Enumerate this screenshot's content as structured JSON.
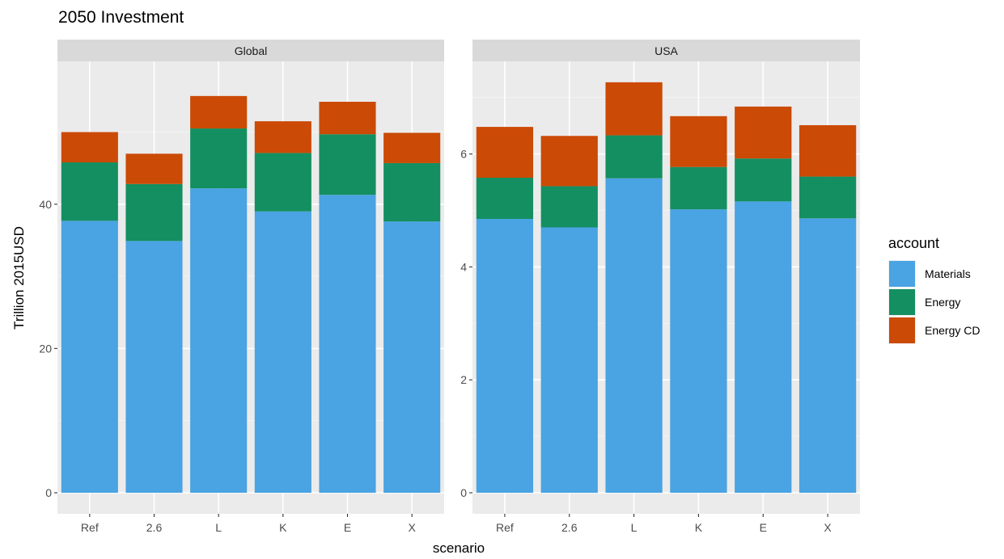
{
  "chart_data": {
    "type": "bar",
    "stacked": true,
    "title": "2050 Investment",
    "xlabel": "scenario",
    "ylabel": "Trillion 2015USD",
    "categories": [
      "Ref",
      "2.6",
      "L",
      "K",
      "E",
      "X"
    ],
    "legend": {
      "title": "account",
      "placement": "right",
      "items": [
        {
          "name": "Materials",
          "color": "#4AA3E2"
        },
        {
          "name": "Energy",
          "color": "#148F61"
        },
        {
          "name": "Energy CD",
          "color": "#CB4A05"
        }
      ]
    },
    "grid": true,
    "panels": [
      {
        "name": "Global",
        "ylim": [
          0,
          59.8
        ],
        "yticks": [
          0,
          20,
          40
        ],
        "series": [
          {
            "name": "Materials",
            "values": [
              37.7,
              34.9,
              42.2,
              39.0,
              41.3,
              37.6
            ]
          },
          {
            "name": "Energy",
            "values": [
              8.1,
              7.9,
              8.3,
              8.1,
              8.4,
              8.1
            ]
          },
          {
            "name": "Energy CD",
            "values": [
              4.2,
              4.2,
              4.5,
              4.4,
              4.5,
              4.2
            ]
          }
        ]
      },
      {
        "name": "USA",
        "ylim": [
          0,
          7.64
        ],
        "yticks": [
          0,
          2,
          4,
          6
        ],
        "series": [
          {
            "name": "Materials",
            "values": [
              4.85,
              4.7,
              5.57,
              5.02,
              5.16,
              4.86
            ]
          },
          {
            "name": "Energy",
            "values": [
              0.73,
              0.73,
              0.76,
              0.75,
              0.76,
              0.74
            ]
          },
          {
            "name": "Energy CD",
            "values": [
              0.9,
              0.89,
              0.94,
              0.9,
              0.92,
              0.91
            ]
          }
        ]
      }
    ]
  }
}
